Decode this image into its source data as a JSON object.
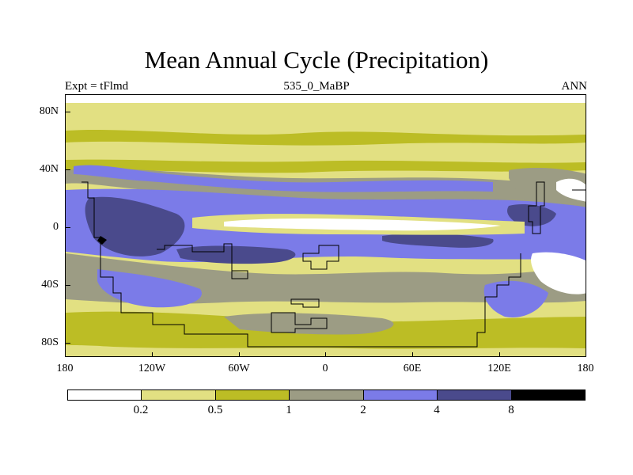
{
  "title": "Mean Annual Cycle (Precipitation)",
  "subtitle_left": "Expt = tFlmd",
  "subtitle_center": "535_0_MaBP",
  "subtitle_right": "ANN",
  "latitude_labels": [
    "80N",
    "40N",
    "0",
    "40S",
    "80S"
  ],
  "longitude_labels": [
    "180",
    "120W",
    "60W",
    "0",
    "60E",
    "120E",
    "180"
  ],
  "colorbar": {
    "labels": [
      "0.2",
      "0.5",
      "1",
      "2",
      "4",
      "8"
    ],
    "colors": [
      "#ffffff",
      "#e2e082",
      "#bcbd25",
      "#9c9c84",
      "#7b7be8",
      "#4a4a8c",
      "#000000"
    ]
  },
  "colors": {
    "white": "#ffffff",
    "pale_yellow": "#e2e082",
    "olive": "#bcbd25",
    "grey": "#9c9c84",
    "blue": "#7b7be8",
    "dark_blue": "#4a4a8c",
    "black": "#000000"
  }
}
